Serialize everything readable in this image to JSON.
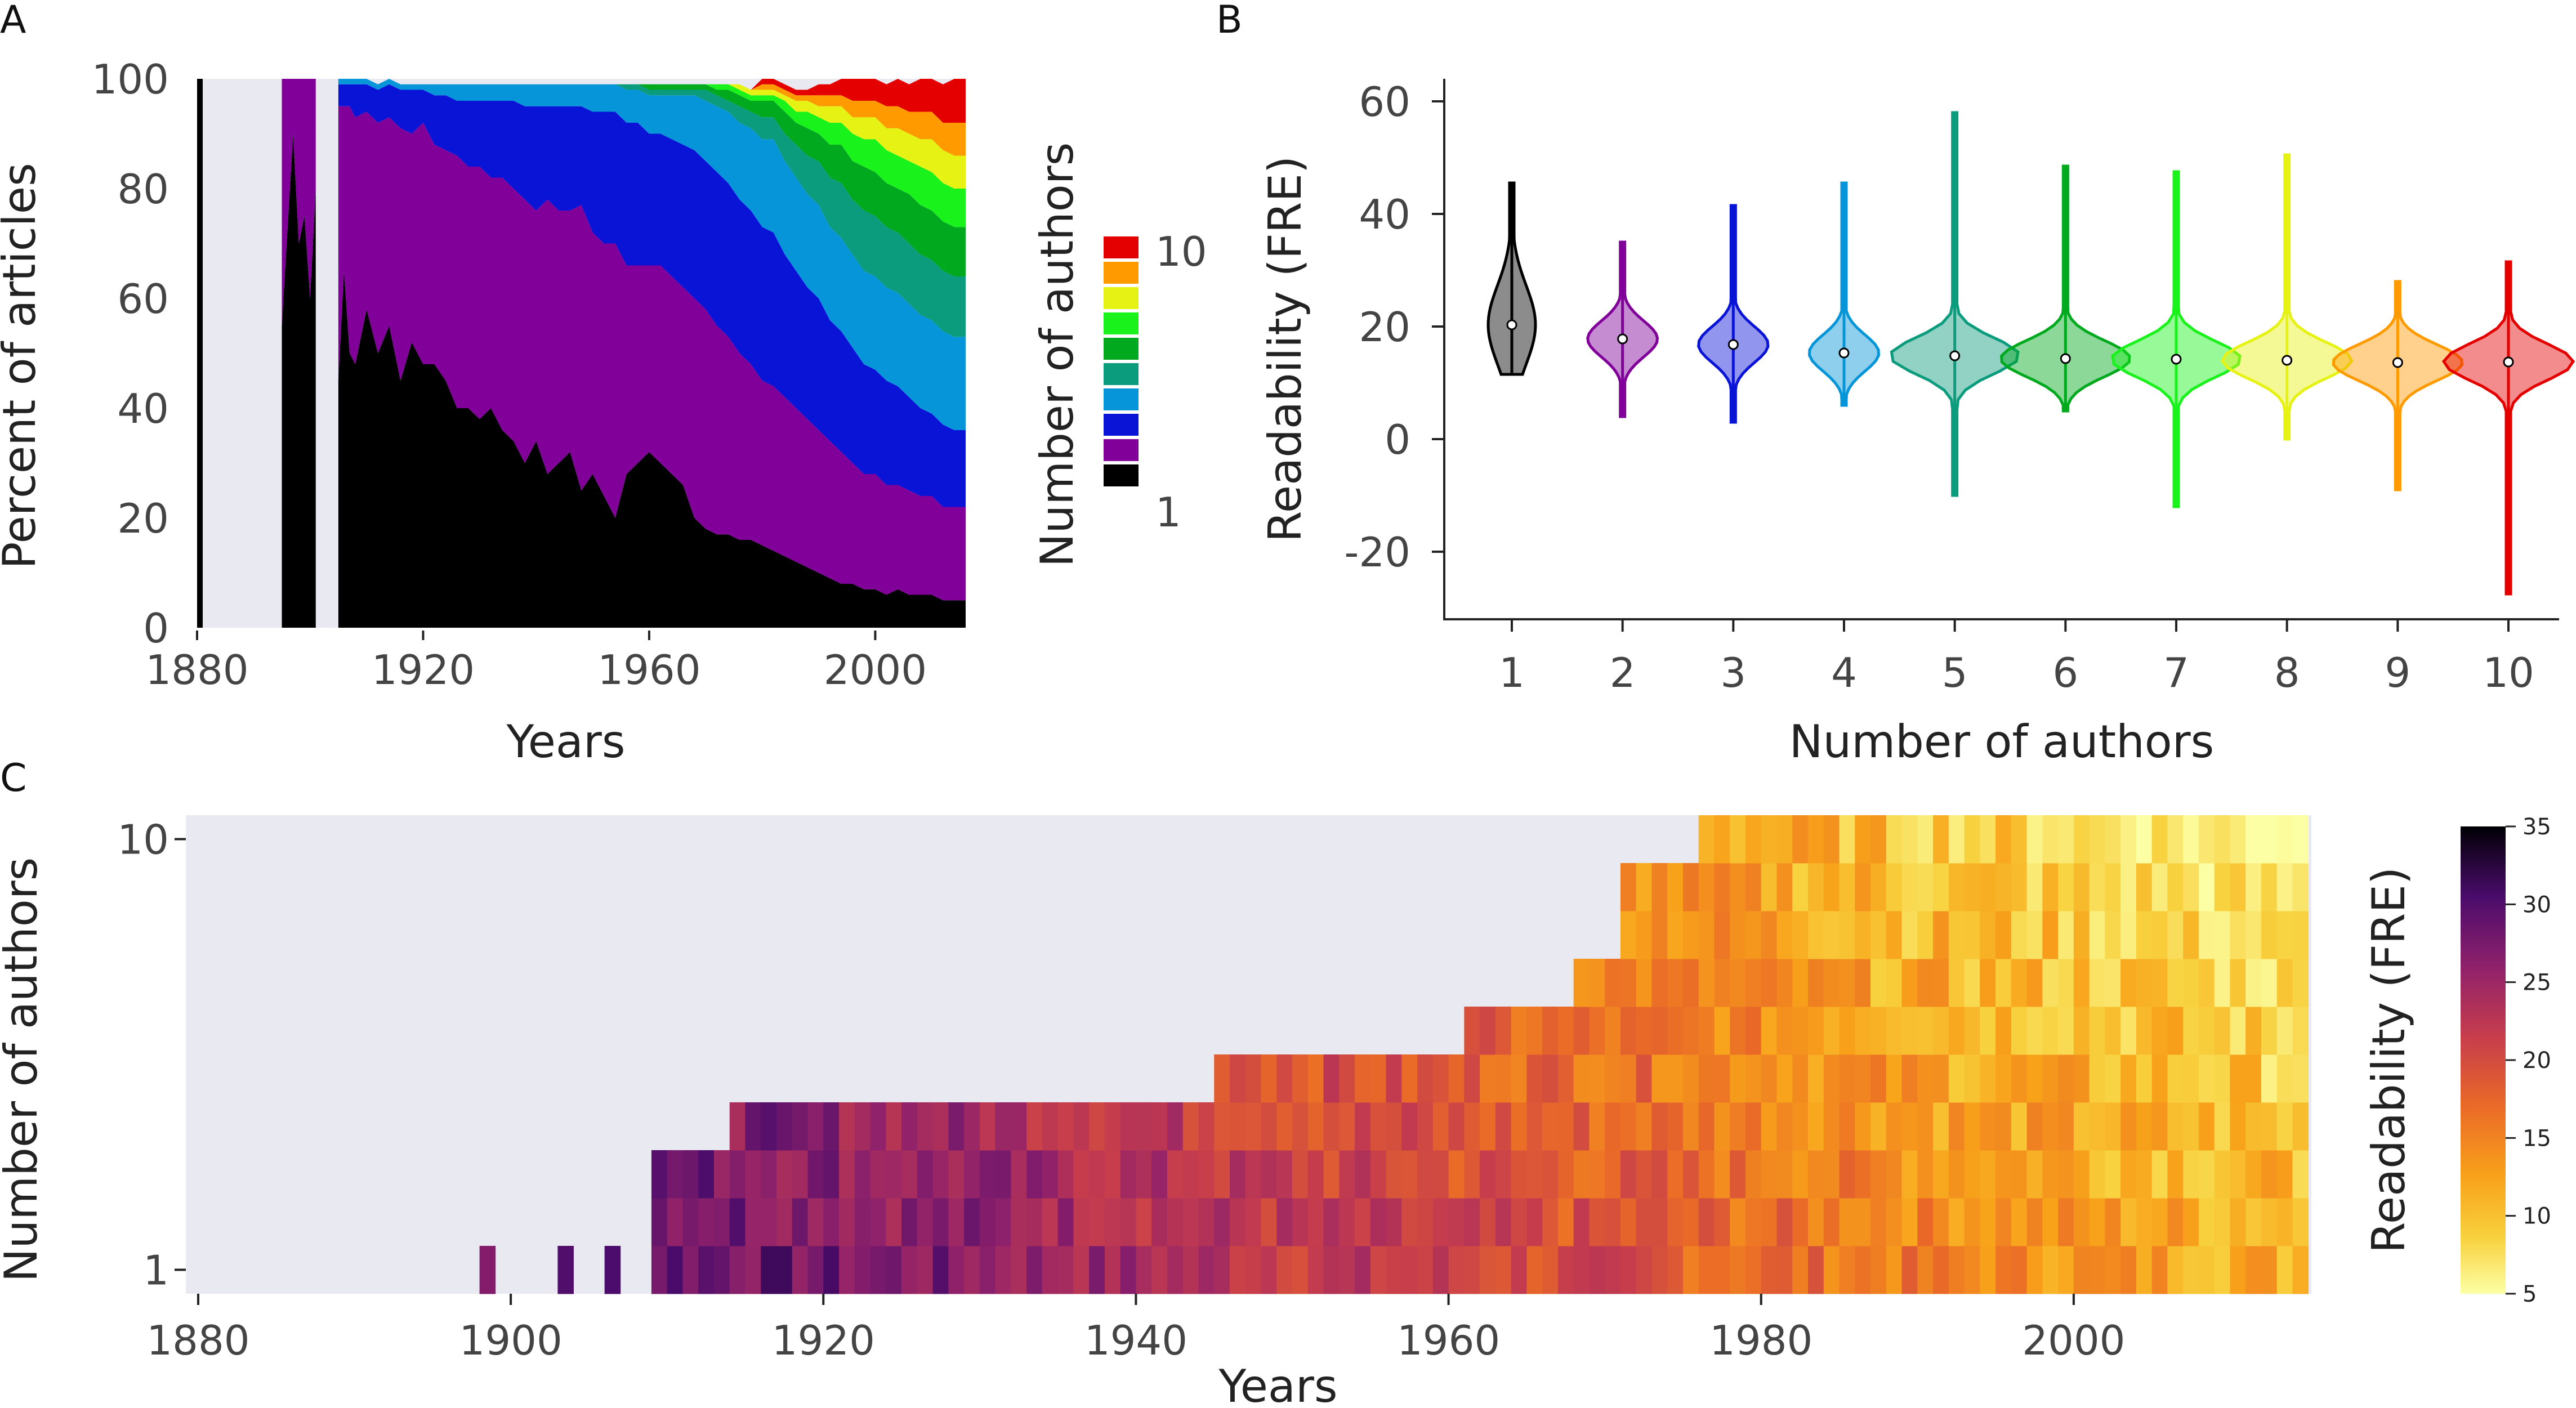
{
  "colors": {
    "author_palette": [
      "#000000",
      "#800099",
      "#0a14d6",
      "#0595d8",
      "#0b9b7d",
      "#00a91d",
      "#1af21b",
      "#e6f214",
      "#ff9a00",
      "#e50000"
    ],
    "panel_bg": "#e9e9f1"
  },
  "chart_data": [
    {
      "panel": "A",
      "type": "area",
      "xlabel": "Years",
      "ylabel": "Percent of articles",
      "xlim": [
        1880,
        2016
      ],
      "ylim": [
        0,
        100
      ],
      "xticks": [
        "1880",
        "1920",
        "1960",
        "2000"
      ],
      "yticks": [
        "0",
        "20",
        "40",
        "60",
        "80",
        "100"
      ],
      "legend": {
        "title": "Number of authors",
        "top_label": "10",
        "bottom_label": "1",
        "placement": "right"
      },
      "stacked": true,
      "x": [
        1880,
        1881,
        1895,
        1897,
        1898,
        1899,
        1900,
        1901,
        1902,
        1903,
        1904,
        1905,
        1906,
        1907,
        1908,
        1910,
        1912,
        1914,
        1916,
        1918,
        1920,
        1922,
        1924,
        1926,
        1928,
        1930,
        1932,
        1934,
        1936,
        1938,
        1940,
        1942,
        1944,
        1946,
        1948,
        1950,
        1952,
        1954,
        1956,
        1958,
        1960,
        1962,
        1964,
        1966,
        1968,
        1970,
        1972,
        1974,
        1976,
        1978,
        1980,
        1982,
        1984,
        1986,
        1988,
        1990,
        1992,
        1994,
        1996,
        1998,
        2000,
        2002,
        2004,
        2006,
        2008,
        2010,
        2012,
        2014,
        2016
      ],
      "series": [
        {
          "values": [
            100,
            null,
            55,
            90,
            70,
            75,
            60,
            80,
            null,
            null,
            null,
            45,
            65,
            50,
            48,
            58,
            50,
            55,
            45,
            52,
            48,
            48,
            45,
            40,
            40,
            38,
            40,
            36,
            34,
            30,
            34,
            28,
            30,
            32,
            25,
            28,
            24,
            20,
            28,
            30,
            32,
            30,
            28,
            26,
            20,
            18,
            17,
            17,
            16,
            16,
            15,
            14,
            13,
            12,
            11,
            10,
            9,
            8,
            8,
            7,
            7,
            6,
            7,
            6,
            6,
            6,
            5,
            5,
            5
          ]
        },
        {
          "values": [
            0,
            null,
            45,
            10,
            30,
            25,
            40,
            20,
            null,
            null,
            null,
            50,
            30,
            45,
            45,
            36,
            42,
            38,
            46,
            38,
            44,
            40,
            42,
            46,
            44,
            46,
            42,
            46,
            46,
            48,
            42,
            50,
            46,
            44,
            52,
            44,
            46,
            50,
            38,
            36,
            34,
            36,
            36,
            36,
            40,
            40,
            38,
            36,
            34,
            32,
            30,
            30,
            29,
            28,
            27,
            26,
            25,
            24,
            22,
            21,
            21,
            20,
            19,
            19,
            18,
            18,
            17,
            17,
            17
          ]
        },
        {
          "values": [
            0,
            null,
            0,
            0,
            0,
            0,
            0,
            0,
            null,
            null,
            null,
            4,
            4,
            4,
            6,
            5,
            6,
            6,
            7,
            8,
            6,
            9,
            10,
            10,
            12,
            12,
            14,
            14,
            16,
            17,
            19,
            17,
            19,
            19,
            18,
            22,
            24,
            24,
            26,
            26,
            24,
            24,
            25,
            26,
            27,
            27,
            28,
            28,
            28,
            28,
            28,
            28,
            26,
            25,
            24,
            24,
            22,
            22,
            21,
            20,
            19,
            19,
            18,
            17,
            16,
            15,
            15,
            14,
            14
          ]
        },
        {
          "values": [
            0,
            null,
            0,
            0,
            0,
            0,
            0,
            0,
            null,
            null,
            null,
            1,
            1,
            1,
            1,
            1,
            1,
            1,
            1,
            1,
            1,
            2,
            2,
            3,
            3,
            3,
            3,
            3,
            3,
            4,
            4,
            4,
            4,
            4,
            4,
            5,
            5,
            5,
            6,
            6,
            7,
            7,
            8,
            9,
            10,
            11,
            12,
            13,
            14,
            15,
            16,
            17,
            17,
            17,
            17,
            17,
            17,
            17,
            17,
            17,
            17,
            17,
            17,
            17,
            17,
            17,
            17,
            17,
            17
          ]
        },
        {
          "values": [
            0,
            null,
            0,
            0,
            0,
            0,
            0,
            0,
            null,
            null,
            null,
            0,
            0,
            0,
            0,
            0,
            0,
            0,
            0,
            0,
            0,
            0,
            0,
            0,
            0,
            0,
            0,
            0,
            0,
            0,
            0,
            0,
            0,
            0,
            0,
            0,
            0,
            0,
            1,
            1,
            1,
            1,
            1,
            1,
            1,
            2,
            2,
            2,
            3,
            3,
            4,
            4,
            5,
            6,
            7,
            8,
            9,
            10,
            10,
            11,
            11,
            11,
            11,
            11,
            11,
            11,
            11,
            11,
            11
          ]
        },
        {
          "values": [
            0,
            null,
            0,
            0,
            0,
            0,
            0,
            0,
            null,
            null,
            null,
            0,
            0,
            0,
            0,
            0,
            0,
            0,
            0,
            0,
            0,
            0,
            0,
            0,
            0,
            0,
            0,
            0,
            0,
            0,
            0,
            0,
            0,
            0,
            0,
            0,
            0,
            0,
            0,
            0,
            1,
            1,
            1,
            1,
            1,
            1,
            1,
            2,
            2,
            2,
            3,
            3,
            4,
            4,
            5,
            5,
            6,
            7,
            7,
            8,
            8,
            8,
            8,
            9,
            9,
            9,
            9,
            9,
            9
          ]
        },
        {
          "values": [
            0,
            null,
            0,
            0,
            0,
            0,
            0,
            0,
            null,
            null,
            null,
            0,
            0,
            0,
            0,
            0,
            0,
            0,
            0,
            0,
            0,
            0,
            0,
            0,
            0,
            0,
            0,
            0,
            0,
            0,
            0,
            0,
            0,
            0,
            0,
            0,
            0,
            0,
            0,
            0,
            0,
            0,
            0,
            0,
            0,
            0,
            1,
            1,
            1,
            1,
            1,
            1,
            2,
            2,
            3,
            3,
            4,
            4,
            5,
            5,
            6,
            6,
            6,
            6,
            7,
            7,
            7,
            7,
            7
          ]
        },
        {
          "values": [
            0,
            null,
            0,
            0,
            0,
            0,
            0,
            0,
            null,
            null,
            null,
            0,
            0,
            0,
            0,
            0,
            0,
            0,
            0,
            0,
            0,
            0,
            0,
            0,
            0,
            0,
            0,
            0,
            0,
            0,
            0,
            0,
            0,
            0,
            0,
            0,
            0,
            0,
            0,
            0,
            0,
            0,
            0,
            0,
            0,
            0,
            0,
            0,
            1,
            1,
            1,
            1,
            1,
            2,
            2,
            2,
            3,
            3,
            3,
            4,
            4,
            4,
            5,
            5,
            5,
            6,
            6,
            6,
            6
          ]
        },
        {
          "values": [
            0,
            null,
            0,
            0,
            0,
            0,
            0,
            0,
            null,
            null,
            null,
            0,
            0,
            0,
            0,
            0,
            0,
            0,
            0,
            0,
            0,
            0,
            0,
            0,
            0,
            0,
            0,
            0,
            0,
            0,
            0,
            0,
            0,
            0,
            0,
            0,
            0,
            0,
            0,
            0,
            0,
            0,
            0,
            0,
            0,
            0,
            0,
            0,
            0,
            0,
            1,
            1,
            1,
            1,
            1,
            2,
            2,
            2,
            3,
            3,
            3,
            4,
            4,
            4,
            5,
            5,
            5,
            6,
            6
          ]
        },
        {
          "values": [
            0,
            null,
            0,
            0,
            0,
            0,
            0,
            0,
            null,
            null,
            null,
            0,
            0,
            0,
            0,
            0,
            0,
            0,
            0,
            0,
            0,
            0,
            0,
            0,
            0,
            0,
            0,
            0,
            0,
            0,
            0,
            0,
            0,
            0,
            0,
            0,
            0,
            0,
            0,
            0,
            0,
            0,
            0,
            0,
            0,
            0,
            0,
            0,
            0,
            0,
            1,
            1,
            1,
            1,
            1,
            2,
            2,
            3,
            4,
            4,
            4,
            4,
            5,
            5,
            6,
            6,
            7,
            8,
            8
          ]
        }
      ]
    },
    {
      "panel": "B",
      "type": "violin",
      "xlabel": "Number of authors",
      "ylabel": "Readability (FRE)",
      "ylim": [
        -32,
        64
      ],
      "yticks": [
        "-20",
        "0",
        "20",
        "40",
        "60"
      ],
      "categories": [
        "1",
        "2",
        "3",
        "4",
        "5",
        "6",
        "7",
        "8",
        "9",
        "10"
      ],
      "median": [
        20.3,
        17.8,
        16.8,
        15.3,
        14.8,
        14.3,
        14.2,
        14.0,
        13.6,
        13.7
      ],
      "min": [
        11.5,
        4.0,
        3.0,
        6.0,
        -10.0,
        5.0,
        -12.0,
        0.0,
        -9.0,
        -27.5
      ],
      "max": [
        45.5,
        35.0,
        41.5,
        45.5,
        58.0,
        48.5,
        47.5,
        50.5,
        28.0,
        31.5
      ]
    },
    {
      "panel": "C",
      "type": "heatmap",
      "xlabel": "Years",
      "ylabel": "Number of authors",
      "xlim": [
        1880,
        2016
      ],
      "xticks": [
        "1880",
        "1900",
        "1920",
        "1940",
        "1960",
        "1980",
        "2000"
      ],
      "yticks": [
        "1",
        "10"
      ],
      "colorbar": {
        "label": "Readability (FRE)",
        "range": [
          5,
          35
        ],
        "ticks": [
          "5",
          "10",
          "15",
          "20",
          "25",
          "30",
          "35"
        ]
      },
      "earliest_year_by_authors": [
        1897,
        1907,
        1907,
        1914,
        1945,
        1961,
        1968,
        1971,
        1971,
        1976
      ],
      "mean_readability_trend": [
        {
          "year": 1910,
          "value": 29
        },
        {
          "year": 1930,
          "value": 26
        },
        {
          "year": 1950,
          "value": 22
        },
        {
          "year": 1970,
          "value": 19
        },
        {
          "year": 1990,
          "value": 15
        },
        {
          "year": 2016,
          "value": 11
        }
      ]
    }
  ]
}
